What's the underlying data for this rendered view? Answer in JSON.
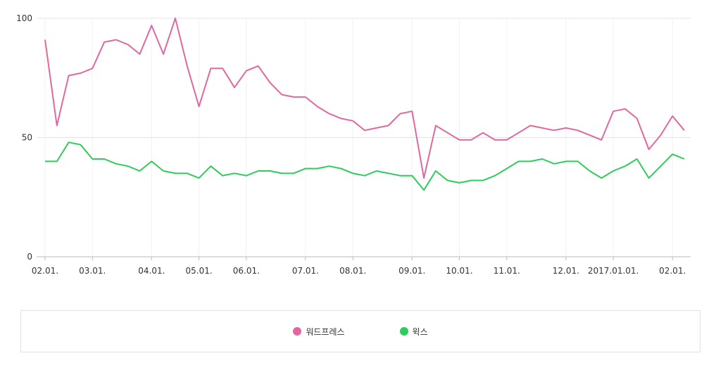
{
  "chart_data": {
    "type": "line",
    "ylim": [
      0,
      100
    ],
    "y_ticks": [
      "0",
      "50",
      "100"
    ],
    "x_tick_labels": [
      "02.01.",
      "03.01.",
      "04.01.",
      "05.01.",
      "06.01.",
      "07.01.",
      "08.01.",
      "09.01.",
      "10.01.",
      "11.01.",
      "12.01.",
      "2017.01.01.",
      "02.01."
    ],
    "x_tick_index": [
      0,
      4,
      9,
      13,
      17,
      22,
      26,
      31,
      35,
      39,
      44,
      48,
      53
    ],
    "legend_position": "bottom",
    "grid": "horizontal",
    "series": [
      {
        "name": "워드프레스",
        "color": "#e0689f",
        "values": [
          91,
          55,
          76,
          77,
          79,
          90,
          91,
          89,
          85,
          97,
          85,
          100,
          80,
          63,
          79,
          79,
          71,
          78,
          80,
          73,
          68,
          67,
          67,
          63,
          60,
          58,
          57,
          53,
          54,
          55,
          60,
          61,
          33,
          55,
          52,
          49,
          49,
          52,
          49,
          49,
          52,
          55,
          54,
          53,
          54,
          53,
          51,
          49,
          61,
          62,
          58,
          45,
          51,
          59,
          53
        ]
      },
      {
        "name": "윅스",
        "color": "#2ecc5a",
        "values": [
          40,
          40,
          48,
          47,
          41,
          41,
          39,
          38,
          36,
          40,
          36,
          35,
          35,
          33,
          38,
          34,
          35,
          34,
          36,
          36,
          35,
          35,
          37,
          37,
          38,
          37,
          35,
          34,
          36,
          35,
          34,
          34,
          28,
          36,
          32,
          31,
          32,
          32,
          34,
          37,
          40,
          40,
          41,
          39,
          40,
          40,
          36,
          33,
          36,
          38,
          41,
          33,
          38,
          43,
          41
        ]
      }
    ]
  }
}
